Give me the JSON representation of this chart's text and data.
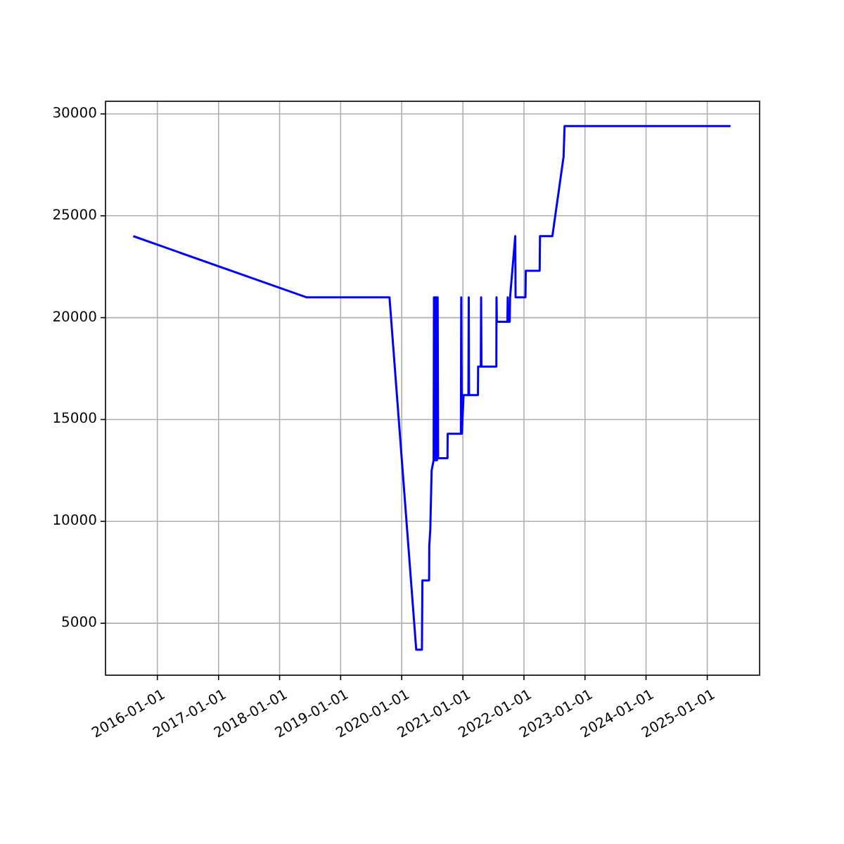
{
  "chart_data": {
    "type": "line",
    "x": [
      "2015-08-10",
      "2018-06-10",
      "2019-10-20",
      "2020-03-28",
      "2020-05-01",
      "2020-05-02",
      "2020-05-04",
      "2020-06-13",
      "2020-06-14",
      "2020-06-20",
      "2020-06-28",
      "2020-07-10",
      "2020-07-12",
      "2020-07-14",
      "2020-07-18",
      "2020-07-22",
      "2020-07-26",
      "2020-07-30",
      "2020-08-03",
      "2020-08-06",
      "2020-10-01",
      "2020-10-02",
      "2020-12-20",
      "2020-12-22",
      "2020-12-26",
      "2021-01-05",
      "2021-02-03",
      "2021-02-05",
      "2021-02-07",
      "2021-04-01",
      "2021-04-02",
      "2021-04-18",
      "2021-04-20",
      "2021-04-22",
      "2021-07-20",
      "2021-07-21",
      "2021-07-23",
      "2021-09-24",
      "2021-09-26",
      "2021-09-28",
      "2021-10-08",
      "2021-10-10",
      "2021-11-10",
      "2021-11-12",
      "2022-01-10",
      "2022-01-12",
      "2022-04-05",
      "2022-04-07",
      "2022-06-20",
      "2022-08-26",
      "2022-09-01",
      "2025-05-20"
    ],
    "series": [
      {
        "color": "#0000ff",
        "values": [
          24000,
          21000,
          21000,
          3700,
          3700,
          4800,
          7100,
          7100,
          8800,
          9600,
          12500,
          13000,
          21000,
          13000,
          21000,
          13000,
          21000,
          13000,
          21000,
          13100,
          13100,
          14300,
          14300,
          21000,
          14300,
          16200,
          16200,
          21000,
          16200,
          16200,
          17600,
          17600,
          21000,
          17600,
          17600,
          21000,
          19800,
          19800,
          21000,
          19800,
          19800,
          21000,
          24000,
          21000,
          21000,
          22300,
          22300,
          24000,
          24000,
          27900,
          29400,
          29400
        ]
      }
    ],
    "xlim": [
      "2015-02-25",
      "2025-11-10"
    ],
    "ylim": [
      2450,
      30620
    ],
    "xticks": [
      "2016-01-01",
      "2017-01-01",
      "2018-01-01",
      "2019-01-01",
      "2020-01-01",
      "2021-01-01",
      "2022-01-01",
      "2023-01-01",
      "2024-01-01",
      "2025-01-01"
    ],
    "yticks": [
      5000,
      10000,
      15000,
      20000,
      25000,
      30000
    ],
    "grid": true,
    "marker": "none",
    "line_style": "solid"
  }
}
